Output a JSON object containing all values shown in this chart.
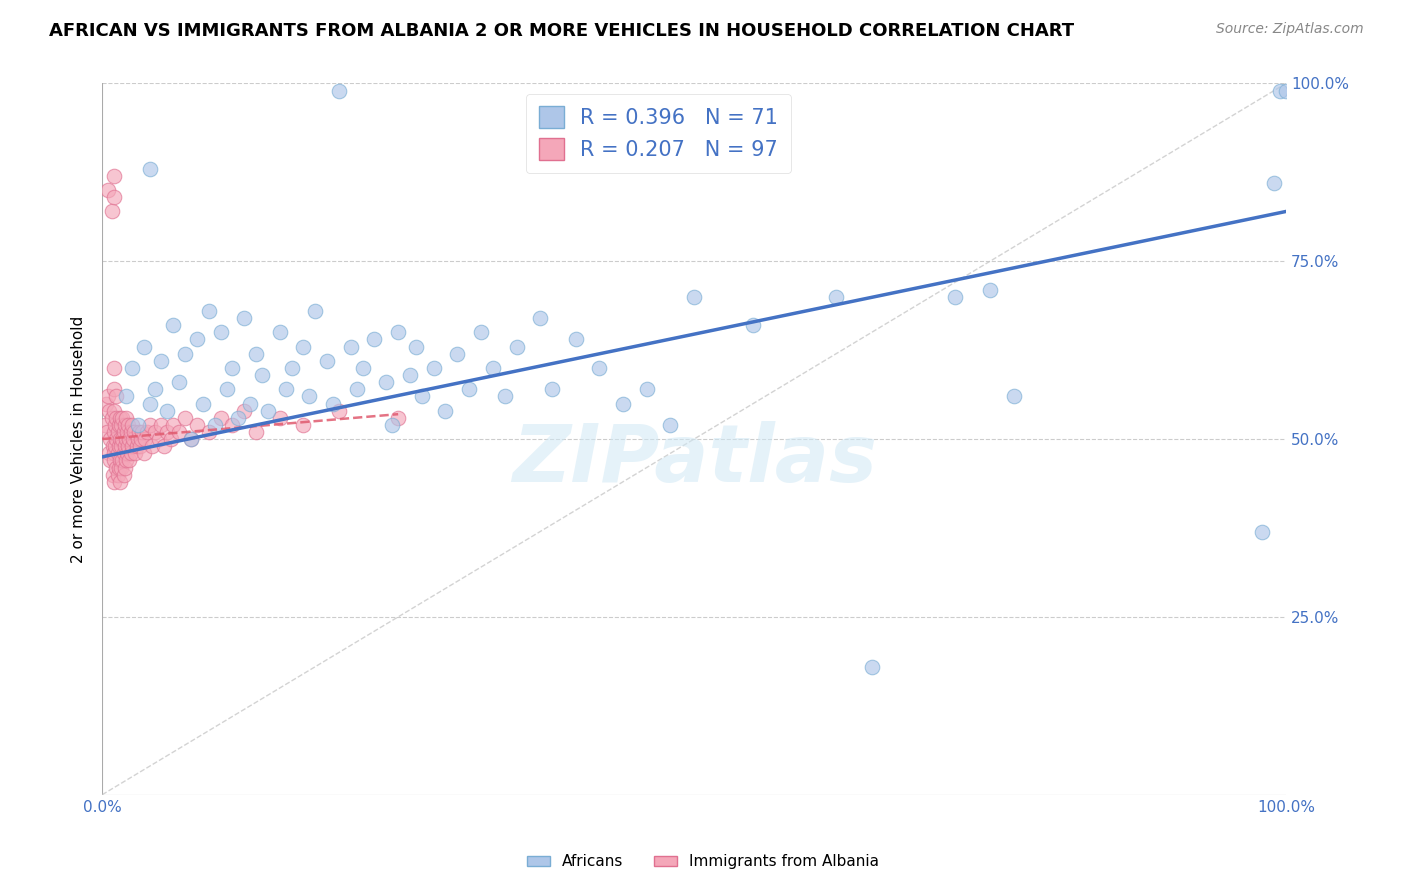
{
  "title": "AFRICAN VS IMMIGRANTS FROM ALBANIA 2 OR MORE VEHICLES IN HOUSEHOLD CORRELATION CHART",
  "source": "Source: ZipAtlas.com",
  "ylabel": "2 or more Vehicles in Household",
  "africans_color": "#aec6e8",
  "albanians_color": "#f4a7b9",
  "africans_edge_color": "#7aadd4",
  "albanians_edge_color": "#e07090",
  "africans_R": 0.396,
  "africans_N": 71,
  "albanians_R": 0.207,
  "albanians_N": 97,
  "trendline_africans_color": "#4472c4",
  "trendline_albanians_color": "#e05a6e",
  "diagonal_color": "#c8c8c8",
  "watermark": "ZIPatlas",
  "watermark_color": "#d0e8f5",
  "legend_africans_label": "Africans",
  "legend_albanians_label": "Immigrants from Albania",
  "africans_x": [
    0.02,
    0.025,
    0.03,
    0.035,
    0.04,
    0.04,
    0.045,
    0.05,
    0.055,
    0.06,
    0.065,
    0.07,
    0.075,
    0.08,
    0.085,
    0.09,
    0.095,
    0.1,
    0.105,
    0.11,
    0.115,
    0.12,
    0.125,
    0.13,
    0.135,
    0.14,
    0.15,
    0.155,
    0.16,
    0.17,
    0.175,
    0.18,
    0.19,
    0.195,
    0.2,
    0.21,
    0.215,
    0.22,
    0.23,
    0.24,
    0.245,
    0.25,
    0.26,
    0.265,
    0.27,
    0.28,
    0.29,
    0.3,
    0.31,
    0.32,
    0.33,
    0.34,
    0.35,
    0.37,
    0.38,
    0.4,
    0.42,
    0.44,
    0.46,
    0.48,
    0.5,
    0.55,
    0.62,
    0.65,
    0.72,
    0.75,
    0.77,
    0.98,
    0.99,
    0.995,
    1.0
  ],
  "africans_y": [
    0.56,
    0.6,
    0.52,
    0.63,
    0.55,
    0.88,
    0.57,
    0.61,
    0.54,
    0.66,
    0.58,
    0.62,
    0.5,
    0.64,
    0.55,
    0.68,
    0.52,
    0.65,
    0.57,
    0.6,
    0.53,
    0.67,
    0.55,
    0.62,
    0.59,
    0.54,
    0.65,
    0.57,
    0.6,
    0.63,
    0.56,
    0.68,
    0.61,
    0.55,
    0.99,
    0.63,
    0.57,
    0.6,
    0.64,
    0.58,
    0.52,
    0.65,
    0.59,
    0.63,
    0.56,
    0.6,
    0.54,
    0.62,
    0.57,
    0.65,
    0.6,
    0.56,
    0.63,
    0.67,
    0.57,
    0.64,
    0.6,
    0.55,
    0.57,
    0.52,
    0.7,
    0.66,
    0.7,
    0.18,
    0.7,
    0.71,
    0.56,
    0.37,
    0.86,
    0.99,
    0.99
  ],
  "albanians_x": [
    0.002,
    0.003,
    0.004,
    0.005,
    0.005,
    0.006,
    0.006,
    0.007,
    0.007,
    0.008,
    0.008,
    0.009,
    0.009,
    0.01,
    0.01,
    0.01,
    0.01,
    0.01,
    0.01,
    0.01,
    0.01,
    0.01,
    0.011,
    0.011,
    0.012,
    0.012,
    0.012,
    0.012,
    0.013,
    0.013,
    0.013,
    0.014,
    0.014,
    0.014,
    0.015,
    0.015,
    0.015,
    0.015,
    0.016,
    0.016,
    0.016,
    0.017,
    0.017,
    0.017,
    0.018,
    0.018,
    0.018,
    0.019,
    0.019,
    0.019,
    0.02,
    0.02,
    0.02,
    0.021,
    0.021,
    0.022,
    0.022,
    0.023,
    0.023,
    0.024,
    0.024,
    0.025,
    0.025,
    0.026,
    0.027,
    0.028,
    0.029,
    0.03,
    0.031,
    0.032,
    0.033,
    0.034,
    0.035,
    0.036,
    0.038,
    0.04,
    0.042,
    0.045,
    0.048,
    0.05,
    0.052,
    0.055,
    0.058,
    0.06,
    0.065,
    0.07,
    0.075,
    0.08,
    0.09,
    0.1,
    0.11,
    0.12,
    0.13,
    0.15,
    0.17,
    0.2,
    0.25
  ],
  "albanians_y": [
    0.52,
    0.55,
    0.51,
    0.85,
    0.56,
    0.48,
    0.54,
    0.5,
    0.47,
    0.82,
    0.53,
    0.45,
    0.49,
    0.87,
    0.84,
    0.51,
    0.48,
    0.44,
    0.54,
    0.57,
    0.6,
    0.47,
    0.52,
    0.49,
    0.5,
    0.46,
    0.53,
    0.56,
    0.48,
    0.51,
    0.45,
    0.52,
    0.49,
    0.46,
    0.53,
    0.5,
    0.47,
    0.44,
    0.52,
    0.49,
    0.46,
    0.53,
    0.5,
    0.47,
    0.51,
    0.48,
    0.45,
    0.52,
    0.49,
    0.46,
    0.53,
    0.5,
    0.47,
    0.51,
    0.48,
    0.52,
    0.49,
    0.5,
    0.47,
    0.51,
    0.48,
    0.52,
    0.49,
    0.5,
    0.51,
    0.48,
    0.49,
    0.5,
    0.51,
    0.49,
    0.5,
    0.51,
    0.48,
    0.5,
    0.51,
    0.52,
    0.49,
    0.51,
    0.5,
    0.52,
    0.49,
    0.51,
    0.5,
    0.52,
    0.51,
    0.53,
    0.5,
    0.52,
    0.51,
    0.53,
    0.52,
    0.54,
    0.51,
    0.53,
    0.52,
    0.54,
    0.53
  ],
  "trendline_af_x0": 0.0,
  "trendline_af_y0": 0.475,
  "trendline_af_x1": 1.0,
  "trendline_af_y1": 0.82,
  "trendline_al_x0": 0.0,
  "trendline_al_y0": 0.5,
  "trendline_al_x1": 0.25,
  "trendline_al_y1": 0.535,
  "xlim": [
    0.0,
    1.0
  ],
  "ylim": [
    0.0,
    1.0
  ],
  "ytick_positions": [
    0.0,
    0.25,
    0.5,
    0.75,
    1.0
  ],
  "ytick_labels": [
    "",
    "25.0%",
    "50.0%",
    "75.0%",
    "100.0%"
  ],
  "xtick_label_left": "0.0%",
  "xtick_label_right": "100.0%"
}
